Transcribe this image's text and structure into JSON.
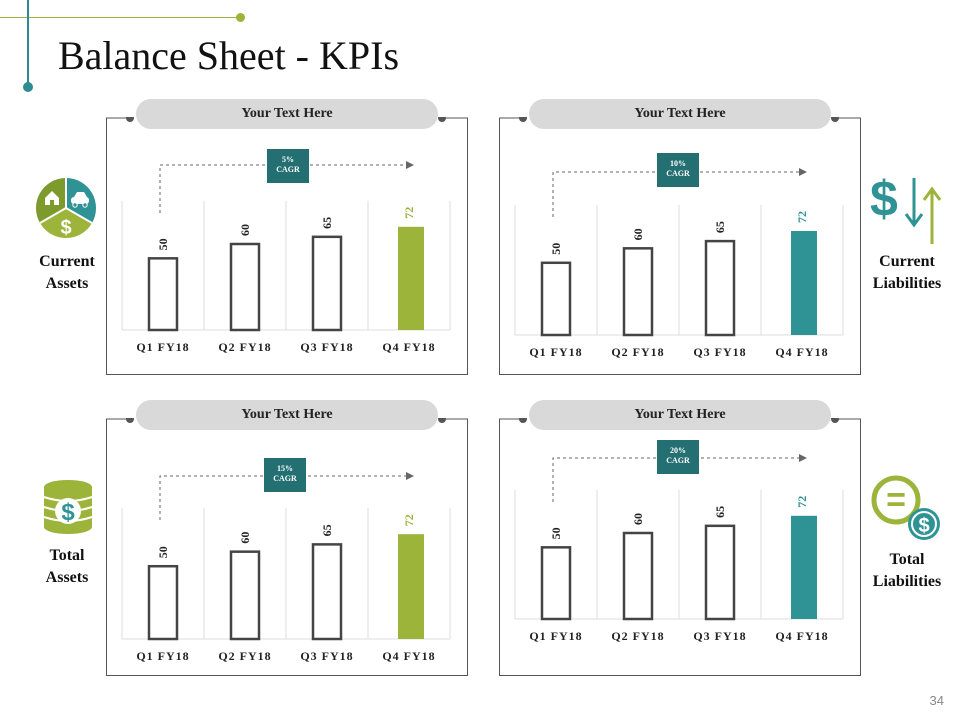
{
  "title": "Balance Sheet - KPIs",
  "page_number": "34",
  "colors": {
    "green": "#9bb439",
    "teal": "#2f9396",
    "dark_teal": "#236f72",
    "bar_outline": "#444444",
    "pill": "#d9d9d9"
  },
  "labels": {
    "current_assets": [
      "Current",
      "Assets"
    ],
    "current_liabilities": [
      "Current",
      "Liabilities"
    ],
    "total_assets": [
      "Total",
      "Assets"
    ],
    "total_liabilities": [
      "Total",
      "Liabilities"
    ]
  },
  "icons": {
    "current_assets": "pie-assets-icon",
    "current_liabilities": "dollar-arrows-icon",
    "total_assets": "dollar-coin-stack-icon",
    "total_liabilities": "equal-dollar-icon",
    "current_assets_dollar": "$",
    "current_liabilities_dollar": "$",
    "total_assets_dollar": "$",
    "total_liabilities_dollar": "$",
    "total_liabilities_equal": "="
  },
  "chart_data": [
    {
      "type": "bar",
      "title": "Your Text Here",
      "cagr": [
        "5%",
        "CAGR"
      ],
      "categories": [
        "Q1 FY18",
        "Q2 FY18",
        "Q3 FY18",
        "Q4 FY18"
      ],
      "values": [
        50,
        60,
        65,
        72
      ],
      "highlight": "green",
      "ylim": [
        0,
        90
      ]
    },
    {
      "type": "bar",
      "title": "Your Text Here",
      "cagr": [
        "10%",
        "CAGR"
      ],
      "categories": [
        "Q1 FY18",
        "Q2 FY18",
        "Q3 FY18",
        "Q4 FY18"
      ],
      "values": [
        50,
        60,
        65,
        72
      ],
      "highlight": "teal",
      "ylim": [
        0,
        90
      ]
    },
    {
      "type": "bar",
      "title": "Your Text Here",
      "cagr": [
        "15%",
        "CAGR"
      ],
      "categories": [
        "Q1 FY18",
        "Q2 FY18",
        "Q3 FY18",
        "Q4 FY18"
      ],
      "values": [
        50,
        60,
        65,
        72
      ],
      "highlight": "green",
      "ylim": [
        0,
        90
      ]
    },
    {
      "type": "bar",
      "title": "Your Text Here",
      "cagr": [
        "20%",
        "CAGR"
      ],
      "categories": [
        "Q1 FY18",
        "Q2 FY18",
        "Q3 FY18",
        "Q4 FY18"
      ],
      "values": [
        50,
        60,
        65,
        72
      ],
      "highlight": "teal",
      "ylim": [
        0,
        90
      ]
    }
  ]
}
